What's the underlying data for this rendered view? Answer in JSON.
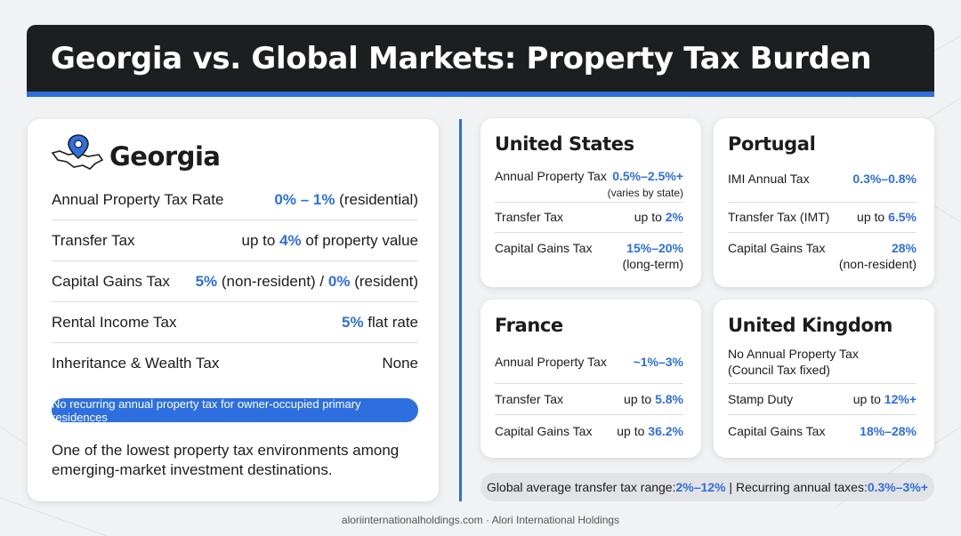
{
  "header": {
    "title": "Georgia vs. Global Markets: Property Tax Burden"
  },
  "colors": {
    "accent": "#2e6fe0",
    "header_bg": "#1d1e20",
    "card_bg": "#ffffff"
  },
  "georgia": {
    "name": "Georgia",
    "icon": "map-pin-icon",
    "rows": [
      {
        "label": "Annual Property Tax Rate",
        "parts": [
          {
            "t": "0% – 1%",
            "hl": true
          },
          {
            "t": " (residential)",
            "hl": false
          }
        ]
      },
      {
        "label": "Transfer Tax",
        "parts": [
          {
            "t": "up to ",
            "hl": false
          },
          {
            "t": "4%",
            "hl": true
          },
          {
            "t": " of property value",
            "hl": false
          }
        ]
      },
      {
        "label": "Capital Gains Tax",
        "parts": [
          {
            "t": "5%",
            "hl": true
          },
          {
            "t": " (non-resident) / ",
            "hl": false
          },
          {
            "t": "0%",
            "hl": true
          },
          {
            "t": " (resident)",
            "hl": false
          }
        ]
      },
      {
        "label": "Rental Income Tax",
        "parts": [
          {
            "t": "5%",
            "hl": true
          },
          {
            "t": " flat rate",
            "hl": false
          }
        ]
      },
      {
        "label": "Inheritance & Wealth Tax",
        "parts": [
          {
            "t": "None",
            "hl": false
          }
        ]
      }
    ],
    "pill": "No recurring annual property tax for owner-occupied primary residences",
    "note": "One of the lowest property tax environments among emerging-market investment destinations."
  },
  "markets": {
    "us": {
      "title": "United States",
      "row1_label": "Annual Property Tax",
      "row1_value": "0.5%–2.5%+",
      "row1_sub": "(varies by state)",
      "row2_label": "Transfer Tax",
      "row2_prefix": "up to ",
      "row2_value": "2%",
      "row3_label": "Capital Gains Tax",
      "row3_value": "15%–20%",
      "row3_sub": "(long-term)"
    },
    "pt": {
      "title": "Portugal",
      "row1_label": "IMI Annual Tax",
      "row1_value": "0.3%–0.8%",
      "row2_label": "Transfer Tax (IMT)",
      "row2_prefix": "up to ",
      "row2_value": "6.5%",
      "row3_label": "Capital Gains Tax",
      "row3_value": "28%",
      "row3_sub": "(non-resident)"
    },
    "fr": {
      "title": "France",
      "row1_label": "Annual Property Tax",
      "row1_value": "~1%–3%",
      "row2_label": "Transfer Tax",
      "row2_prefix": "up to ",
      "row2_value": "5.8%",
      "row3_label": "Capital Gains Tax",
      "row3_prefix": "up to ",
      "row3_value": "36.2%"
    },
    "uk": {
      "title": "United Kingdom",
      "row1_label": "No Annual Property Tax",
      "row1_sub": "(Council Tax fixed)",
      "row2_label": "Stamp Duty",
      "row2_prefix": "up to ",
      "row2_value": "12%+",
      "row3_label": "Capital Gains Tax",
      "row3_value": "18%–28%"
    }
  },
  "summary": {
    "part1": "Global average transfer tax range: ",
    "value1": "2%–12%",
    "sep": " | ",
    "part2": "Recurring annual taxes: ",
    "value2": "0.3%–3%+"
  },
  "footer": {
    "site": "aloriinternationalholdings.com",
    "dot": " · ",
    "company": "Alori International Holdings"
  }
}
